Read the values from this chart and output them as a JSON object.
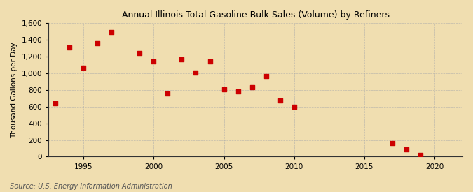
{
  "title": "Annual Illinois Total Gasoline Bulk Sales (Volume) by Refiners",
  "ylabel": "Thousand Gallons per Day",
  "source": "Source: U.S. Energy Information Administration",
  "background_color": "#f0deb0",
  "plot_background_color": "#f0deb0",
  "marker_color": "#cc0000",
  "marker": "s",
  "marker_size": 4,
  "xlim": [
    1992.5,
    2022
  ],
  "ylim": [
    0,
    1600
  ],
  "yticks": [
    0,
    200,
    400,
    600,
    800,
    1000,
    1200,
    1400,
    1600
  ],
  "xticks": [
    1995,
    2000,
    2005,
    2010,
    2015,
    2020
  ],
  "grid_color": "#aaaaaa",
  "data": [
    {
      "year": 1993,
      "value": 640
    },
    {
      "year": 1994,
      "value": 1310
    },
    {
      "year": 1995,
      "value": 1065
    },
    {
      "year": 1996,
      "value": 1360
    },
    {
      "year": 1997,
      "value": 1490
    },
    {
      "year": 1999,
      "value": 1240
    },
    {
      "year": 2000,
      "value": 1140
    },
    {
      "year": 2001,
      "value": 760
    },
    {
      "year": 2002,
      "value": 1170
    },
    {
      "year": 2003,
      "value": 1010
    },
    {
      "year": 2004,
      "value": 1140
    },
    {
      "year": 2005,
      "value": 805
    },
    {
      "year": 2006,
      "value": 785
    },
    {
      "year": 2007,
      "value": 835
    },
    {
      "year": 2008,
      "value": 970
    },
    {
      "year": 2009,
      "value": 675
    },
    {
      "year": 2010,
      "value": 600
    },
    {
      "year": 2017,
      "value": 160
    },
    {
      "year": 2018,
      "value": 90
    },
    {
      "year": 2019,
      "value": 20
    }
  ]
}
